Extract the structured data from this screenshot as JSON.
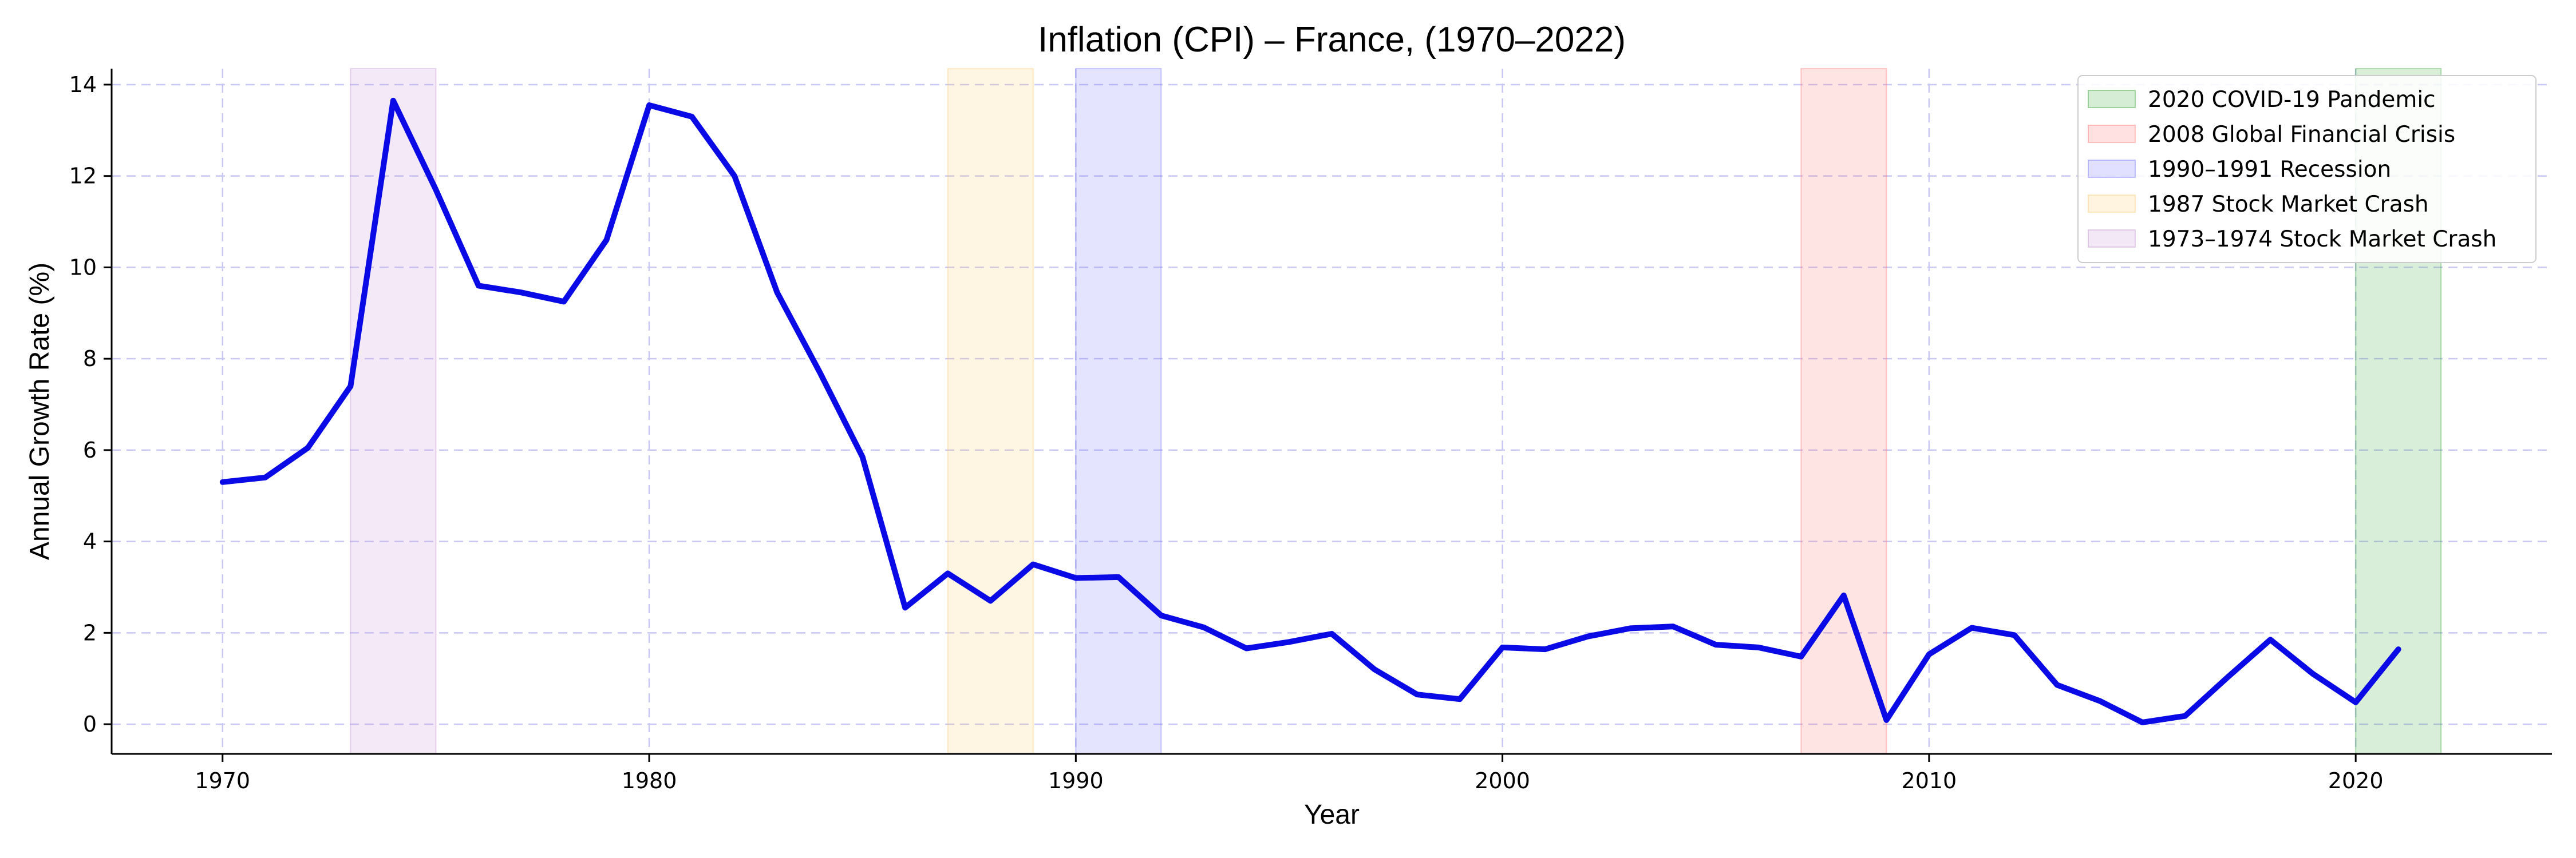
{
  "chart_data": {
    "type": "line",
    "title": "Inflation (CPI) – France, (1970–2022)",
    "xlabel": "Year",
    "ylabel": "Annual Growth Rate (%)",
    "xlim": [
      1967.4,
      2024.6
    ],
    "ylim": [
      -0.65,
      14.35
    ],
    "x_ticks": [
      1970,
      1980,
      1990,
      2000,
      2010,
      2020
    ],
    "y_ticks": [
      0,
      2,
      4,
      6,
      8,
      10,
      12,
      14
    ],
    "grid": true,
    "legend_position": "top-right",
    "line_color": "#0a0ae6",
    "series": [
      {
        "x": [
          1970,
          1971,
          1972,
          1973,
          1974,
          1975,
          1976,
          1977,
          1978,
          1979,
          1980,
          1981,
          1982,
          1983,
          1984,
          1985,
          1986,
          1987,
          1988,
          1989,
          1990,
          1991,
          1992,
          1993,
          1994,
          1995,
          1996,
          1997,
          1998,
          1999,
          2000,
          2001,
          2002,
          2003,
          2004,
          2005,
          2006,
          2007,
          2008,
          2009,
          2010,
          2011,
          2012,
          2013,
          2014,
          2015,
          2016,
          2017,
          2018,
          2019,
          2020,
          2021
        ],
        "values": [
          5.3,
          5.4,
          6.05,
          7.4,
          13.65,
          11.7,
          9.6,
          9.45,
          9.25,
          10.6,
          13.55,
          13.3,
          12.0,
          9.45,
          7.7,
          5.85,
          2.55,
          3.3,
          2.7,
          3.5,
          3.2,
          3.22,
          2.38,
          2.12,
          1.66,
          1.8,
          1.98,
          1.2,
          0.65,
          0.55,
          1.68,
          1.64,
          1.92,
          2.1,
          2.14,
          1.74,
          1.68,
          1.48,
          2.82,
          0.09,
          1.53,
          2.11,
          1.95,
          0.86,
          0.51,
          0.04,
          0.18,
          1.03,
          1.85,
          1.1,
          0.48,
          1.64
        ]
      }
    ],
    "shaded_periods": [
      {
        "label": "2020 COVID-19 Pandemic",
        "start": 2020,
        "end": 2022,
        "color": "#2ca02c"
      },
      {
        "label": "2008 Global Financial Crisis",
        "start": 2007,
        "end": 2009,
        "color": "#ff6b6b"
      },
      {
        "label": "1990–1991 Recession",
        "start": 1990,
        "end": 1992,
        "color": "#6b6bff"
      },
      {
        "label": "1987 Stock Market Crash",
        "start": 1987,
        "end": 1989,
        "color": "#ffc966"
      },
      {
        "label": "1973–1974 Stock Market Crash",
        "start": 1973,
        "end": 1975,
        "color": "#c08ad0"
      }
    ]
  }
}
